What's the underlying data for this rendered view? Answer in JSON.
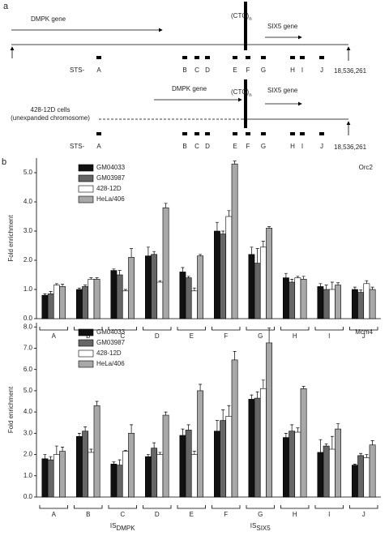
{
  "diagram": {
    "panel_a": "a",
    "panel_b": "b",
    "gene1": "DMPK gene",
    "repeat": "(CTG)",
    "repeat_sub": "n",
    "gene2": "SIX5 gene",
    "sts_prefix": "STS-",
    "sts": [
      "A",
      "B",
      "C",
      "D",
      "E",
      "F",
      "G",
      "H",
      "I",
      "J"
    ],
    "coordinate": "18,536,261",
    "cells_line1": "428-12D cells",
    "cells_line2": "(unexpanded chromosome)"
  },
  "chart_data": [
    {
      "type": "bar",
      "title": "Orc2",
      "y_label": "Fold enrichment",
      "categories": [
        "A",
        "B",
        "C",
        "D",
        "E",
        "F",
        "G",
        "H",
        "I",
        "J"
      ],
      "ylim": [
        0,
        5.5
      ],
      "yticks": [
        {
          "value": 0,
          "label": "0.0"
        },
        {
          "value": 1,
          "label": "1.0"
        },
        {
          "value": 2,
          "label": "2.0"
        },
        {
          "value": 3,
          "label": "3.0"
        },
        {
          "value": 4,
          "label": "4.0"
        },
        {
          "value": 5,
          "label": "5.0"
        }
      ],
      "series": [
        {
          "name": "GM04033",
          "color": "#111111",
          "values": [
            0.8,
            1.0,
            1.65,
            2.15,
            1.6,
            3.0,
            2.2,
            1.4,
            1.1,
            1.0
          ],
          "errors": [
            0.05,
            0.05,
            0.05,
            0.3,
            0.15,
            0.3,
            0.25,
            0.15,
            0.1,
            0.08
          ]
        },
        {
          "name": "GM03987",
          "color": "#666666",
          "values": [
            0.85,
            1.1,
            1.5,
            2.2,
            1.4,
            2.9,
            1.9,
            1.25,
            1.0,
            0.9
          ],
          "errors": [
            0.08,
            0.05,
            0.15,
            0.1,
            0.05,
            0.1,
            0.5,
            0.1,
            0.15,
            0.08
          ]
        },
        {
          "name": "428-12D",
          "color": "#ffffff",
          "values": [
            1.15,
            1.35,
            0.95,
            1.25,
            0.95,
            3.5,
            2.45,
            1.4,
            1.0,
            1.2
          ],
          "errors": [
            0.05,
            0.05,
            0.05,
            0.05,
            0.1,
            0.2,
            0.2,
            0.05,
            0.25,
            0.1
          ]
        },
        {
          "name": "HeLa/406",
          "color": "#a8a8a8",
          "values": [
            1.1,
            1.35,
            2.1,
            3.8,
            2.15,
            5.3,
            3.1,
            1.35,
            1.15,
            1.0
          ],
          "errors": [
            0.08,
            0.05,
            0.3,
            0.15,
            0.05,
            0.1,
            0.05,
            0.1,
            0.08,
            0.08
          ]
        }
      ]
    },
    {
      "type": "bar",
      "title": "Mcm4",
      "y_label": "Fold enrichment",
      "categories": [
        "A",
        "B",
        "C",
        "D",
        "E",
        "F",
        "G",
        "H",
        "I",
        "J"
      ],
      "ylim": [
        0,
        8.2
      ],
      "yticks": [
        {
          "value": 0,
          "label": "0.0"
        },
        {
          "value": 1,
          "label": "1.0"
        },
        {
          "value": 2,
          "label": "2.0"
        },
        {
          "value": 3,
          "label": "3.0"
        },
        {
          "value": 4,
          "label": "4.0"
        },
        {
          "value": 5,
          "label": "5.0"
        },
        {
          "value": 6,
          "label": "6.0"
        },
        {
          "value": 7,
          "label": "7.0"
        },
        {
          "value": 8,
          "label": "8.0"
        }
      ],
      "annotations": [
        {
          "text": "IS",
          "sub": "DMPK",
          "category": "C"
        },
        {
          "text": "IS",
          "sub": "SIX5",
          "category": "G"
        }
      ],
      "series": [
        {
          "name": "GM04033",
          "color": "#111111",
          "values": [
            1.8,
            2.85,
            1.55,
            1.9,
            2.9,
            3.1,
            4.6,
            2.8,
            2.1,
            1.5
          ],
          "errors": [
            0.2,
            0.15,
            0.1,
            0.1,
            0.3,
            0.5,
            0.2,
            0.2,
            0.6,
            0.05
          ]
        },
        {
          "name": "GM03987",
          "color": "#666666",
          "values": [
            1.75,
            3.1,
            1.5,
            2.3,
            3.15,
            3.6,
            4.65,
            3.1,
            2.4,
            1.95
          ],
          "errors": [
            0.15,
            0.2,
            0.25,
            0.25,
            0.25,
            0.5,
            0.3,
            0.3,
            0.1,
            0.1
          ]
        },
        {
          "name": "428-12D",
          "color": "#ffffff",
          "values": [
            2.0,
            2.1,
            2.15,
            2.0,
            2.0,
            3.8,
            5.1,
            3.05,
            2.25,
            1.85
          ],
          "errors": [
            0.4,
            0.15,
            0.05,
            0.1,
            0.15,
            0.5,
            0.4,
            0.2,
            0.6,
            0.15
          ]
        },
        {
          "name": "HeLa/406",
          "color": "#a8a8a8",
          "values": [
            2.15,
            4.3,
            3.0,
            3.85,
            5.0,
            6.45,
            7.25,
            5.1,
            3.2,
            2.45
          ],
          "errors": [
            0.2,
            0.2,
            0.4,
            0.15,
            0.3,
            0.4,
            0.7,
            0.1,
            0.25,
            0.2
          ]
        }
      ]
    }
  ]
}
